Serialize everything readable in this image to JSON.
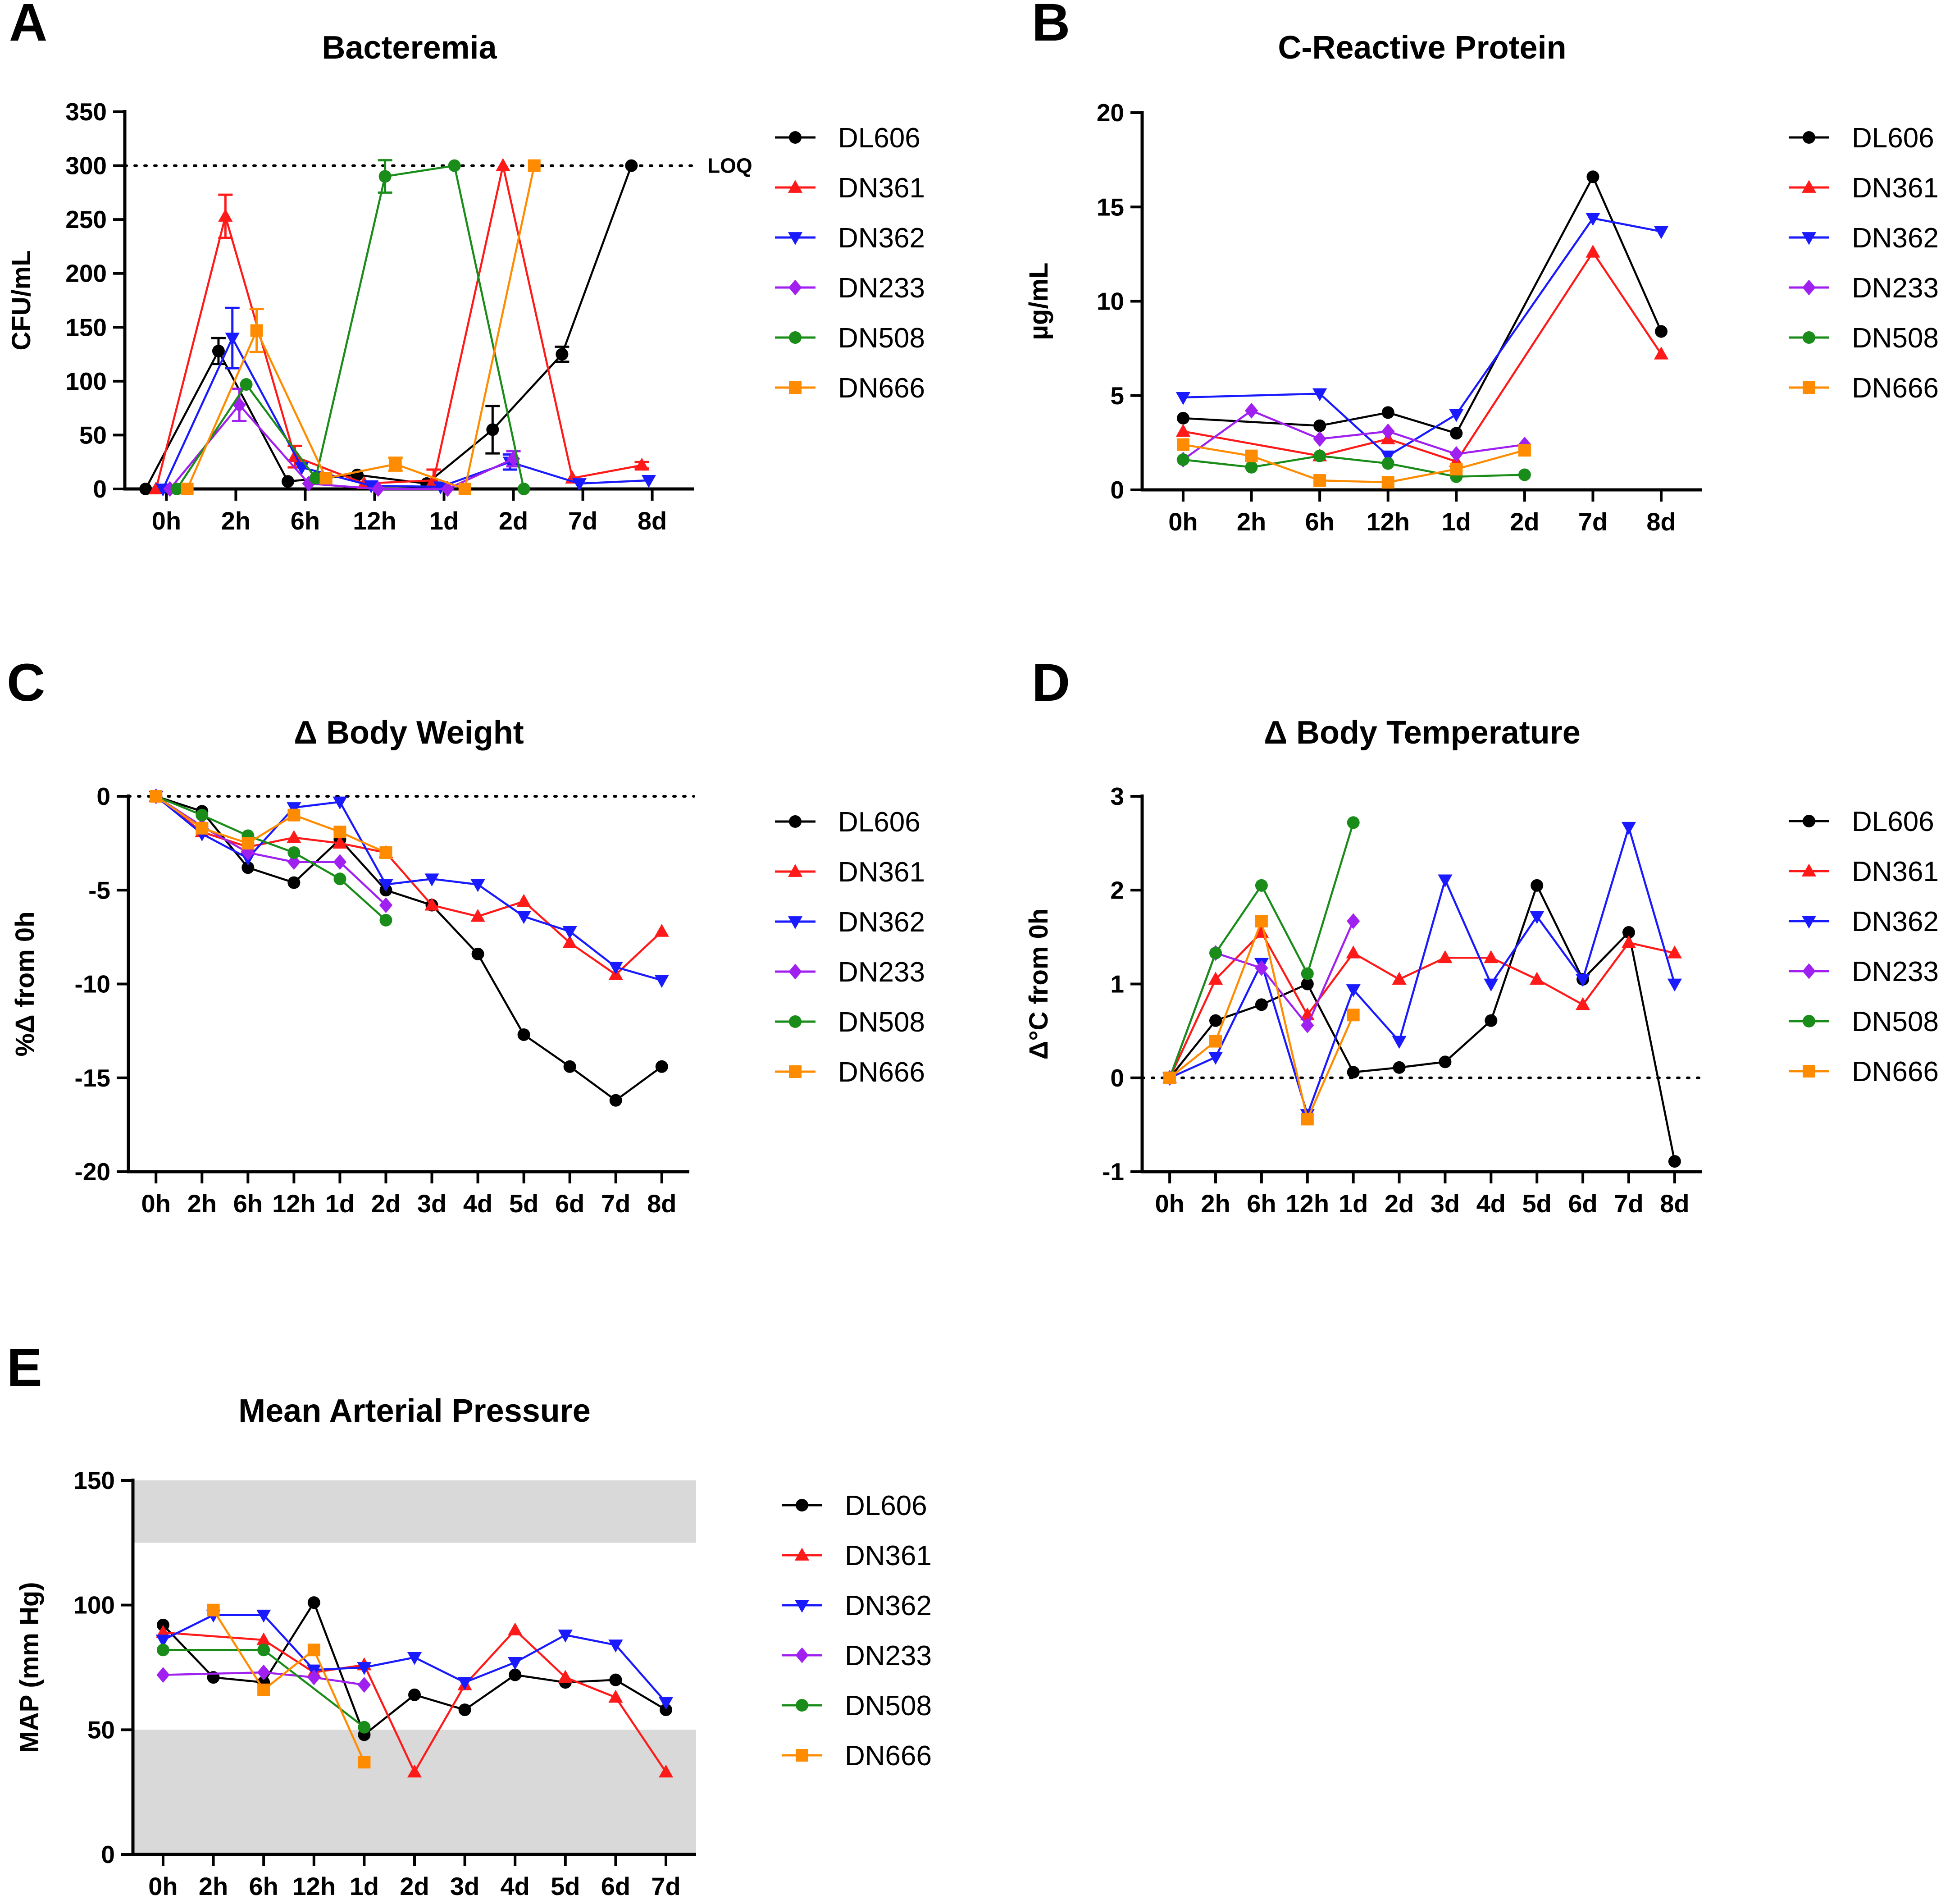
{
  "series_styles": [
    {
      "name": "DL606",
      "color": "#000000",
      "marker": "circle"
    },
    {
      "name": "DN361",
      "color": "#ff1a1a",
      "marker": "triangle-up"
    },
    {
      "name": "DN362",
      "color": "#1a1aff",
      "marker": "triangle-down"
    },
    {
      "name": "DN233",
      "color": "#a020f0",
      "marker": "diamond"
    },
    {
      "name": "DN508",
      "color": "#1a8c1a",
      "marker": "circle"
    },
    {
      "name": "DN666",
      "color": "#ff8c00",
      "marker": "square"
    }
  ],
  "chart_data": [
    {
      "panel": "A",
      "type": "line",
      "title": "Bacteremia",
      "ylabel": "CFU/mL",
      "xlabel": "",
      "categories": [
        "0h",
        "2h",
        "6h",
        "12h",
        "1d",
        "2d",
        "7d",
        "8d"
      ],
      "ylim": [
        0,
        350
      ],
      "yticks": [
        0,
        50,
        100,
        150,
        200,
        250,
        300,
        350
      ],
      "reference_line": {
        "y": 300,
        "label": "LOQ"
      },
      "legend": "right",
      "series": [
        {
          "name": "DL606",
          "x": [
            -0.3,
            0.75,
            1.75,
            2.75,
            3.75,
            4.7,
            5.7,
            6.7
          ],
          "values": [
            0,
            128,
            7,
            13,
            5,
            55,
            125,
            300
          ],
          "errors": [
            0,
            12,
            0,
            0,
            0,
            22,
            7,
            0
          ]
        },
        {
          "name": "DN361",
          "x": [
            -0.15,
            0.85,
            1.85,
            2.85,
            3.85,
            4.85,
            5.85,
            6.85
          ],
          "values": [
            0,
            253,
            30,
            5,
            8,
            300,
            10,
            22
          ],
          "errors": [
            0,
            20,
            10,
            0,
            10,
            0,
            0,
            3
          ]
        },
        {
          "name": "DN362",
          "x": [
            -0.05,
            0.95,
            1.95,
            2.95,
            3.95,
            4.95,
            5.95,
            6.95
          ],
          "values": [
            0,
            140,
            20,
            3,
            2,
            25,
            5,
            8
          ],
          "errors": [
            0,
            28,
            0,
            0,
            0,
            7,
            0,
            0
          ]
        },
        {
          "name": "DN233",
          "x": [
            0.05,
            1.05,
            2.05,
            3.05,
            4.05,
            5.0
          ],
          "values": [
            0,
            78,
            5,
            0,
            0,
            28
          ],
          "errors": [
            0,
            15,
            0,
            0,
            0,
            7
          ]
        },
        {
          "name": "DN508",
          "x": [
            0.15,
            1.15,
            2.15,
            3.15,
            4.15,
            5.15
          ],
          "values": [
            0,
            97,
            10,
            290,
            300,
            0
          ],
          "errors": [
            0,
            0,
            0,
            15,
            0,
            0
          ]
        },
        {
          "name": "DN666",
          "x": [
            0.3,
            1.3,
            2.3,
            3.3,
            4.3,
            5.3
          ],
          "values": [
            0,
            147,
            10,
            23,
            0,
            300
          ],
          "errors": [
            0,
            20,
            0,
            6,
            0,
            0
          ]
        }
      ]
    },
    {
      "panel": "B",
      "type": "line",
      "title": "C-Reactive Protein",
      "ylabel": "µg/mL",
      "xlabel": "",
      "categories": [
        "0h",
        "2h",
        "6h",
        "12h",
        "1d",
        "2d",
        "7d",
        "8d"
      ],
      "ylim": [
        0,
        20
      ],
      "yticks": [
        0,
        5,
        10,
        15,
        20
      ],
      "legend": "right",
      "series": [
        {
          "name": "DL606",
          "values": [
            3.8,
            null,
            3.4,
            4.1,
            3.0,
            null,
            16.6,
            8.4
          ]
        },
        {
          "name": "DN361",
          "values": [
            3.1,
            null,
            1.8,
            2.7,
            1.5,
            null,
            12.6,
            7.2
          ]
        },
        {
          "name": "DN362",
          "values": [
            4.9,
            null,
            5.1,
            1.8,
            4.0,
            null,
            14.4,
            13.7
          ]
        },
        {
          "name": "DN233",
          "values": [
            1.6,
            4.2,
            2.7,
            3.1,
            1.9,
            2.4,
            null,
            null
          ]
        },
        {
          "name": "DN508",
          "values": [
            1.6,
            1.2,
            1.8,
            1.4,
            0.7,
            0.8,
            null,
            null
          ]
        },
        {
          "name": "DN666",
          "values": [
            2.4,
            1.8,
            0.5,
            0.4,
            1.1,
            2.1,
            null,
            null
          ]
        }
      ]
    },
    {
      "panel": "C",
      "type": "line",
      "title": "Δ Body Weight",
      "ylabel": "%Δ from 0h",
      "xlabel": "",
      "categories": [
        "0h",
        "2h",
        "6h",
        "12h",
        "1d",
        "2d",
        "3d",
        "4d",
        "5d",
        "6d",
        "7d",
        "8d"
      ],
      "ylim": [
        -20,
        0
      ],
      "yticks": [
        -20,
        -15,
        -10,
        -5,
        0
      ],
      "reference_line": {
        "y": 0,
        "label": ""
      },
      "legend": "right",
      "series": [
        {
          "name": "DL606",
          "values": [
            0,
            -0.8,
            -3.8,
            -4.6,
            -2.3,
            -5.0,
            -5.8,
            -8.4,
            -12.7,
            -14.4,
            -16.2,
            -14.4
          ]
        },
        {
          "name": "DN361",
          "values": [
            0,
            -1.9,
            -2.7,
            -2.2,
            -2.5,
            -3.0,
            -5.8,
            -6.4,
            -5.6,
            -7.8,
            -9.5,
            -7.2
          ]
        },
        {
          "name": "DN362",
          "values": [
            0,
            -2.0,
            -3.3,
            -0.6,
            -0.3,
            -4.7,
            -4.4,
            -4.7,
            -6.4,
            -7.2,
            -9.1,
            -9.8
          ]
        },
        {
          "name": "DN233",
          "values": [
            0,
            -1.6,
            -3.0,
            -3.5,
            -3.5,
            -5.8,
            null,
            null,
            null,
            null,
            null,
            null
          ]
        },
        {
          "name": "DN508",
          "values": [
            0,
            -1.0,
            -2.1,
            -3.0,
            -4.4,
            -6.6,
            null,
            null,
            null,
            null,
            null,
            null
          ]
        },
        {
          "name": "DN666",
          "values": [
            0,
            -1.7,
            -2.5,
            -1.0,
            -1.9,
            -3.0,
            null,
            null,
            null,
            null,
            null,
            null
          ]
        }
      ]
    },
    {
      "panel": "D",
      "type": "line",
      "title": "Δ Body Temperature",
      "ylabel": "Δ°C from 0h",
      "xlabel": "",
      "categories": [
        "0h",
        "2h",
        "6h",
        "12h",
        "1d",
        "2d",
        "3d",
        "4d",
        "5d",
        "6d",
        "7d",
        "8d"
      ],
      "ylim": [
        -1,
        3
      ],
      "yticks": [
        -1,
        0,
        1,
        2,
        3
      ],
      "reference_line": {
        "y": 0,
        "label": ""
      },
      "legend": "right",
      "series": [
        {
          "name": "DL606",
          "values": [
            0,
            0.61,
            0.78,
            1.0,
            0.06,
            0.11,
            0.17,
            0.61,
            2.05,
            1.05,
            1.55,
            -0.89
          ]
        },
        {
          "name": "DN361",
          "values": [
            0,
            1.05,
            1.55,
            0.67,
            1.33,
            1.05,
            1.28,
            1.28,
            1.05,
            0.78,
            1.44,
            1.33
          ]
        },
        {
          "name": "DN362",
          "values": [
            0,
            0.22,
            1.22,
            -0.39,
            0.94,
            0.39,
            2.11,
            1.0,
            1.72,
            1.05,
            2.67,
            1.0
          ]
        },
        {
          "name": "DN233",
          "values": [
            0,
            1.33,
            1.17,
            0.56,
            1.67,
            null,
            null,
            null,
            null,
            null,
            null,
            null
          ]
        },
        {
          "name": "DN508",
          "values": [
            0,
            1.33,
            2.05,
            1.11,
            2.72,
            null,
            null,
            null,
            null,
            null,
            null,
            null
          ]
        },
        {
          "name": "DN666",
          "values": [
            0,
            0.39,
            1.67,
            -0.44,
            0.67,
            null,
            null,
            null,
            null,
            null,
            null,
            null
          ]
        }
      ]
    },
    {
      "panel": "E",
      "type": "line",
      "title": "Mean Arterial Pressure",
      "ylabel": "MAP (mm Hg)",
      "xlabel": "",
      "categories": [
        "0h",
        "2h",
        "6h",
        "12h",
        "1d",
        "2d",
        "3d",
        "4d",
        "5d",
        "6d",
        "7d"
      ],
      "ylim": [
        0,
        150
      ],
      "yticks": [
        0,
        50,
        100,
        150
      ],
      "shaded_bands": [
        [
          0,
          50
        ],
        [
          125,
          150
        ]
      ],
      "legend": "right",
      "series": [
        {
          "name": "DL606",
          "values": [
            92,
            71,
            69,
            101,
            48,
            64,
            58,
            72,
            69,
            70,
            58
          ]
        },
        {
          "name": "DN361",
          "values": [
            89,
            null,
            86,
            73,
            76,
            33,
            68,
            90,
            71,
            63,
            33
          ]
        },
        {
          "name": "DN362",
          "values": [
            86,
            96,
            96,
            74,
            75,
            79,
            69,
            77,
            88,
            84,
            61
          ]
        },
        {
          "name": "DN233",
          "values": [
            72,
            null,
            73,
            71,
            68,
            null,
            null,
            null,
            null,
            null,
            null
          ]
        },
        {
          "name": "DN508",
          "values": [
            82,
            null,
            82,
            null,
            51,
            null,
            null,
            null,
            null,
            null,
            null
          ]
        },
        {
          "name": "DN666",
          "values": [
            null,
            98,
            66,
            82,
            37,
            null,
            null,
            null,
            null,
            null,
            null
          ]
        }
      ]
    }
  ]
}
